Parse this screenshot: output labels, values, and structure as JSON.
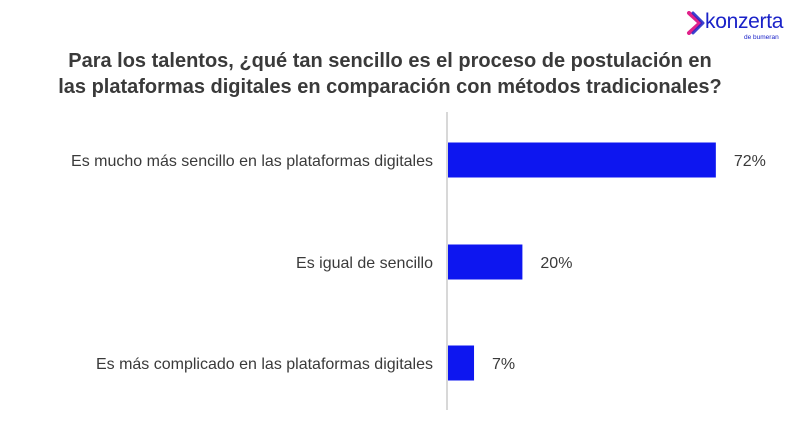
{
  "logo": {
    "word": "konzerta",
    "sub": "de bumeran"
  },
  "title_lines": [
    "Para los talentos, ¿qué tan sencillo es el proceso de postulación en",
    "las plataformas digitales en comparación con métodos tradicionales?"
  ],
  "colors": {
    "bar": "#0d16f0",
    "text": "#3a3a3a",
    "axis": "#bfbfbf",
    "logo": "#1a22c8"
  },
  "chart_data": {
    "type": "bar",
    "orientation": "horizontal",
    "categories": [
      "Es mucho más sencillo en las plataformas digitales",
      "Es igual de sencillo",
      "Es más complicado en las plataformas digitales"
    ],
    "values": [
      72,
      20,
      7
    ],
    "value_labels": [
      "72%",
      "20%",
      "7%"
    ],
    "unit": "%",
    "xlim": [
      0,
      100
    ],
    "grid": false,
    "legend": "none"
  }
}
